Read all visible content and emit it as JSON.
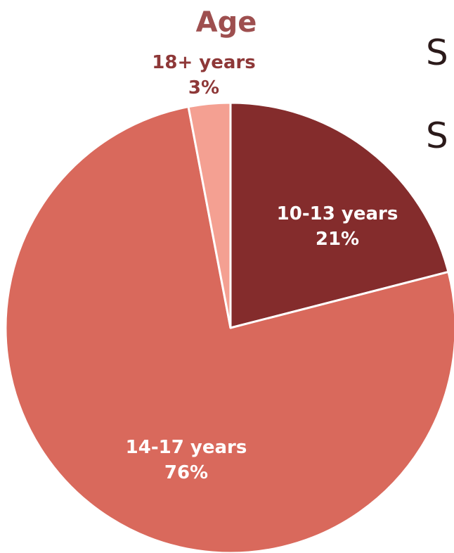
{
  "chart_data": {
    "type": "pie",
    "title": "Age",
    "start_angle_deg": 0,
    "direction": "clockwise",
    "slices": [
      {
        "label": "10-13 years",
        "percent_label": "21%",
        "value": 21,
        "color": "#842c2c",
        "label_color": "#ffffff"
      },
      {
        "label": "14-17 years",
        "percent_label": "76%",
        "value": 76,
        "color": "#d9695c",
        "label_color": "#ffffff"
      },
      {
        "label": "18+ years",
        "percent_label": "3%",
        "value": 3,
        "color": "#f4a092",
        "label_color": "#8e3838"
      }
    ]
  },
  "background_text": [
    "S",
    "S"
  ],
  "colors": {
    "title": "#9e4f4f",
    "slice_border": "#ffffff",
    "background_text": "#2b1a1a"
  }
}
